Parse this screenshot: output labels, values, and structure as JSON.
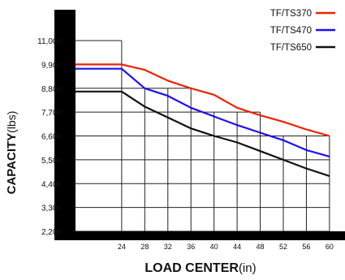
{
  "chart_data": {
    "type": "line",
    "x": [
      24,
      28,
      32,
      36,
      40,
      44,
      48,
      52,
      56,
      60
    ],
    "x_ticks": [
      "24",
      "28",
      "32",
      "36",
      "40",
      "44",
      "48",
      "52",
      "56",
      "60"
    ],
    "y_ticks": [
      "2,200",
      "3,300",
      "4,400",
      "5,500",
      "6,600",
      "7,700",
      "8,800",
      "9,900",
      "11,000"
    ],
    "xlim": [
      16,
      61
    ],
    "ylim": [
      2200,
      11000
    ],
    "xlabel_main": "LOAD CENTER",
    "xlabel_unit": "(in)",
    "ylabel_main": "CAPACITY",
    "ylabel_unit": "(lbs)",
    "legend_position": "top-right",
    "grid": true,
    "series": [
      {
        "name": "TF/TS370",
        "color": "#ee2200",
        "x": [
          16,
          24,
          28,
          32,
          36,
          40,
          44,
          48,
          52,
          56,
          60
        ],
        "values": [
          9900,
          9900,
          9650,
          9150,
          8800,
          8500,
          7900,
          7550,
          7250,
          6900,
          6600
        ]
      },
      {
        "name": "TF/TS470",
        "color": "#1a10ee",
        "x": [
          16,
          24,
          28,
          32,
          36,
          40,
          44,
          48,
          52,
          56,
          60
        ],
        "values": [
          9700,
          9700,
          8800,
          8450,
          7900,
          7500,
          7100,
          6750,
          6400,
          5950,
          5650
        ]
      },
      {
        "name": "TF/TS650",
        "color": "#111111",
        "x": [
          16,
          24,
          28,
          32,
          36,
          40,
          44,
          48,
          52,
          56,
          60
        ],
        "values": [
          8650,
          8650,
          7950,
          7450,
          6950,
          6600,
          6300,
          5900,
          5500,
          5100,
          4750
        ]
      }
    ]
  }
}
